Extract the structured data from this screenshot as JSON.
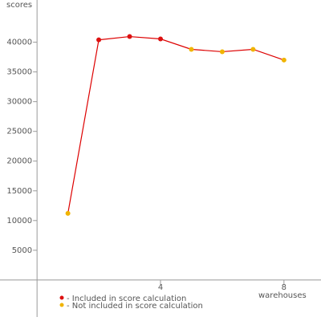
{
  "chart_data": {
    "type": "line",
    "y_label": "scores",
    "x_label": "warehouses",
    "x": [
      1,
      2,
      3,
      4,
      5,
      6,
      7,
      8
    ],
    "line_color": "#dd0000",
    "series": [
      {
        "name": "- Included in score calculation",
        "color": "#dd1111",
        "values": [
          null,
          40400,
          40950,
          40550,
          null,
          null,
          null,
          null
        ]
      },
      {
        "name": "- Not included in score calculation",
        "color": "#f0b400",
        "values": [
          11200,
          null,
          null,
          null,
          38800,
          38400,
          38800,
          37000
        ]
      }
    ],
    "xlim": [
      -1.2,
      9.2
    ],
    "xticks": [
      4,
      8
    ],
    "ylim": [
      -6900,
      47100
    ],
    "yticks": [
      5000,
      10000,
      15000,
      20000,
      25000,
      30000,
      35000,
      40000
    ]
  }
}
